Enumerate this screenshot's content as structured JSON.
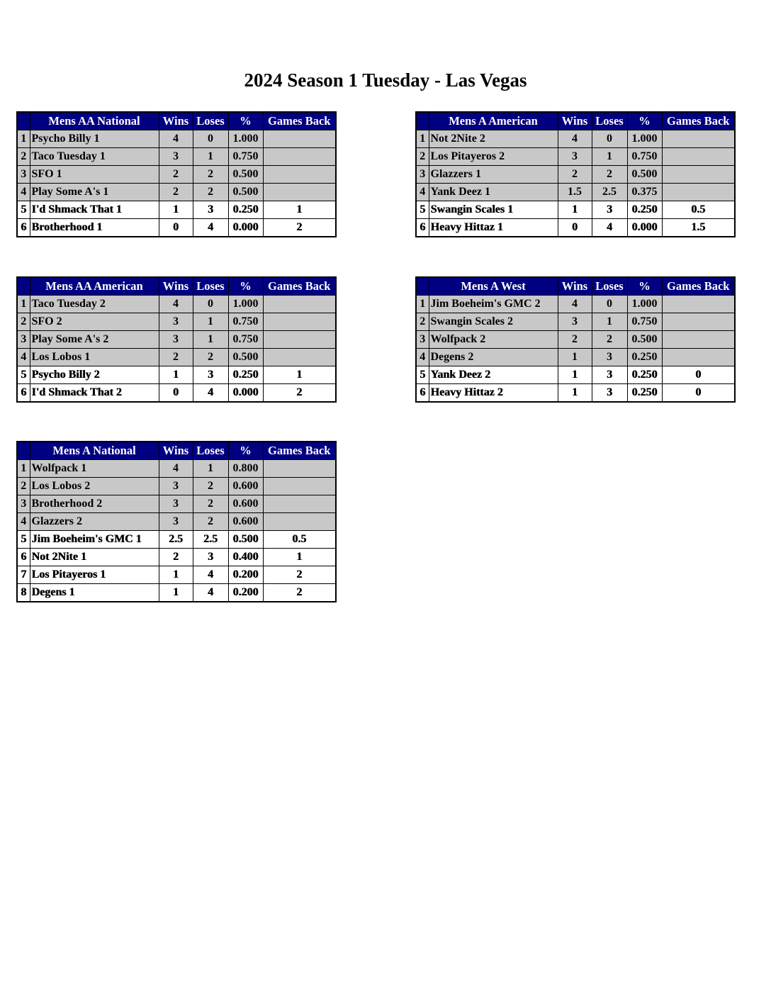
{
  "title": "2024 Season 1 Tuesday - Las Vegas",
  "columns": [
    "Wins",
    "Loses",
    "%",
    "Games Back"
  ],
  "colors": {
    "header_bg": "#000080",
    "header_text": "#ffffff",
    "playoff_row_bg": "#c8c8c8",
    "other_row_bg": "#ffffff"
  },
  "divisions": [
    {
      "name": "Mens AA National",
      "rows": [
        {
          "rank": "1",
          "team": "Psycho Billy 1",
          "wins": "4",
          "loses": "0",
          "pct": "1.000",
          "gb": ""
        },
        {
          "rank": "2",
          "team": "Taco Tuesday 1",
          "wins": "3",
          "loses": "1",
          "pct": "0.750",
          "gb": ""
        },
        {
          "rank": "3",
          "team": "SFO 1",
          "wins": "2",
          "loses": "2",
          "pct": "0.500",
          "gb": ""
        },
        {
          "rank": "4",
          "team": "Play Some A's 1",
          "wins": "2",
          "loses": "2",
          "pct": "0.500",
          "gb": ""
        },
        {
          "rank": "5",
          "team": "I'd Shmack That 1",
          "wins": "1",
          "loses": "3",
          "pct": "0.250",
          "gb": "1"
        },
        {
          "rank": "6",
          "team": "Brotherhood 1",
          "wins": "0",
          "loses": "4",
          "pct": "0.000",
          "gb": "2"
        }
      ]
    },
    {
      "name": "Mens A American",
      "rows": [
        {
          "rank": "1",
          "team": "Not 2Nite 2",
          "wins": "4",
          "loses": "0",
          "pct": "1.000",
          "gb": ""
        },
        {
          "rank": "2",
          "team": "Los Pitayeros 2",
          "wins": "3",
          "loses": "1",
          "pct": "0.750",
          "gb": ""
        },
        {
          "rank": "3",
          "team": "Glazzers 1",
          "wins": "2",
          "loses": "2",
          "pct": "0.500",
          "gb": ""
        },
        {
          "rank": "4",
          "team": "Yank Deez 1",
          "wins": "1.5",
          "loses": "2.5",
          "pct": "0.375",
          "gb": ""
        },
        {
          "rank": "5",
          "team": "Swangin Scales 1",
          "wins": "1",
          "loses": "3",
          "pct": "0.250",
          "gb": "0.5"
        },
        {
          "rank": "6",
          "team": "Heavy Hittaz 1",
          "wins": "0",
          "loses": "4",
          "pct": "0.000",
          "gb": "1.5"
        }
      ]
    },
    {
      "name": "Mens AA American",
      "rows": [
        {
          "rank": "1",
          "team": "Taco Tuesday 2",
          "wins": "4",
          "loses": "0",
          "pct": "1.000",
          "gb": ""
        },
        {
          "rank": "2",
          "team": "SFO 2",
          "wins": "3",
          "loses": "1",
          "pct": "0.750",
          "gb": ""
        },
        {
          "rank": "3",
          "team": "Play Some A's 2",
          "wins": "3",
          "loses": "1",
          "pct": "0.750",
          "gb": ""
        },
        {
          "rank": "4",
          "team": "Los Lobos 1",
          "wins": "2",
          "loses": "2",
          "pct": "0.500",
          "gb": ""
        },
        {
          "rank": "5",
          "team": "Psycho Billy 2",
          "wins": "1",
          "loses": "3",
          "pct": "0.250",
          "gb": "1"
        },
        {
          "rank": "6",
          "team": "I'd Shmack That 2",
          "wins": "0",
          "loses": "4",
          "pct": "0.000",
          "gb": "2"
        }
      ]
    },
    {
      "name": "Mens A West",
      "rows": [
        {
          "rank": "1",
          "team": "Jim Boeheim's GMC 2",
          "wins": "4",
          "loses": "0",
          "pct": "1.000",
          "gb": ""
        },
        {
          "rank": "2",
          "team": "Swangin Scales 2",
          "wins": "3",
          "loses": "1",
          "pct": "0.750",
          "gb": ""
        },
        {
          "rank": "3",
          "team": "Wolfpack 2",
          "wins": "2",
          "loses": "2",
          "pct": "0.500",
          "gb": ""
        },
        {
          "rank": "4",
          "team": "Degens 2",
          "wins": "1",
          "loses": "3",
          "pct": "0.250",
          "gb": ""
        },
        {
          "rank": "5",
          "team": "Yank Deez 2",
          "wins": "1",
          "loses": "3",
          "pct": "0.250",
          "gb": "0"
        },
        {
          "rank": "6",
          "team": "Heavy Hittaz 2",
          "wins": "1",
          "loses": "3",
          "pct": "0.250",
          "gb": "0"
        }
      ]
    },
    {
      "name": "Mens A National",
      "rows": [
        {
          "rank": "1",
          "team": "Wolfpack 1",
          "wins": "4",
          "loses": "1",
          "pct": "0.800",
          "gb": ""
        },
        {
          "rank": "2",
          "team": "Los Lobos 2",
          "wins": "3",
          "loses": "2",
          "pct": "0.600",
          "gb": ""
        },
        {
          "rank": "3",
          "team": "Brotherhood 2",
          "wins": "3",
          "loses": "2",
          "pct": "0.600",
          "gb": ""
        },
        {
          "rank": "4",
          "team": "Glazzers 2",
          "wins": "3",
          "loses": "2",
          "pct": "0.600",
          "gb": ""
        },
        {
          "rank": "5",
          "team": "Jim Boeheim's GMC 1",
          "wins": "2.5",
          "loses": "2.5",
          "pct": "0.500",
          "gb": "0.5"
        },
        {
          "rank": "6",
          "team": "Not 2Nite 1",
          "wins": "2",
          "loses": "3",
          "pct": "0.400",
          "gb": "1"
        },
        {
          "rank": "7",
          "team": "Los Pitayeros 1",
          "wins": "1",
          "loses": "4",
          "pct": "0.200",
          "gb": "2"
        },
        {
          "rank": "8",
          "team": "Degens 1",
          "wins": "1",
          "loses": "4",
          "pct": "0.200",
          "gb": "2"
        }
      ]
    }
  ]
}
